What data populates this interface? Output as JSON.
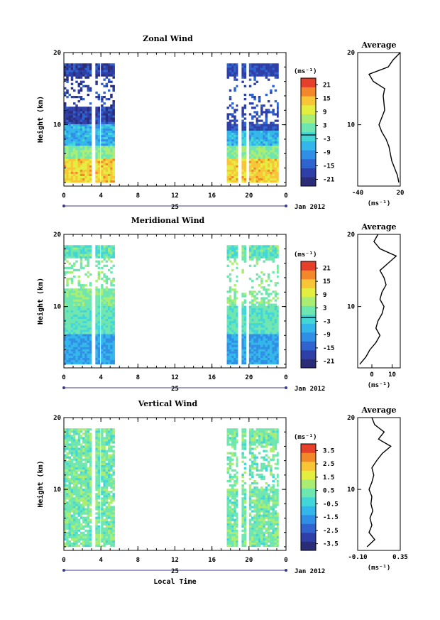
{
  "chart_data": [
    {
      "type": "heatmap",
      "title": "Zonal Wind",
      "ylabel": "Height (km)",
      "ylim": [
        1.5,
        20
      ],
      "yticks": [
        "20",
        "10"
      ],
      "xticks": [
        "0",
        "4",
        "8",
        "12",
        "16",
        "20",
        "0"
      ],
      "xlim": [
        0,
        24
      ],
      "date_day": "25",
      "date_label": "Jan 2012",
      "colorbar": {
        "unit": "(ms⁻¹)",
        "ticks": [
          "21",
          "15",
          "9",
          "3",
          "-3",
          "-9",
          "-15",
          "-21"
        ],
        "min": -24,
        "max": 24
      },
      "segments": [
        [
          0,
          3.0
        ],
        [
          3.4,
          3.9
        ],
        [
          4.0,
          5.5
        ],
        [
          17.6,
          18.8
        ],
        [
          19.2,
          19.7
        ],
        [
          20.0,
          23.2
        ]
      ],
      "palette_side": "warm",
      "average": {
        "title": "Average",
        "unit": "(ms⁻¹)",
        "xlim": [
          -40,
          20
        ],
        "xticks": [
          "-40",
          "20"
        ],
        "heights": [
          2,
          3,
          4,
          5,
          6,
          7,
          8,
          9,
          10,
          11,
          12,
          13,
          14,
          15,
          16,
          17,
          18,
          19,
          20
        ],
        "values": [
          18,
          16,
          12,
          8,
          6,
          4,
          0,
          -6,
          -10,
          -6,
          -2,
          -3,
          -4,
          -2,
          -18,
          -24,
          3,
          10,
          20
        ]
      }
    },
    {
      "type": "heatmap",
      "title": "Meridional Wind",
      "ylabel": "Height (km)",
      "ylim": [
        1.5,
        20
      ],
      "yticks": [
        "20",
        "10"
      ],
      "xticks": [
        "0",
        "4",
        "8",
        "12",
        "16",
        "20",
        "0"
      ],
      "xlim": [
        0,
        24
      ],
      "date_day": "25",
      "date_label": "Jan 2012",
      "colorbar": {
        "unit": "(ms⁻¹)",
        "ticks": [
          "21",
          "15",
          "9",
          "3",
          "-3",
          "-9",
          "-15",
          "-21"
        ],
        "min": -24,
        "max": 24
      },
      "segments": [
        [
          0,
          3.0
        ],
        [
          3.4,
          3.9
        ],
        [
          4.0,
          5.5
        ],
        [
          17.6,
          18.8
        ],
        [
          19.2,
          19.7
        ],
        [
          20.0,
          23.2
        ]
      ],
      "palette_side": "cool",
      "average": {
        "title": "Average",
        "unit": "(ms⁻¹)",
        "xlim": [
          -7,
          14
        ],
        "xticks": [
          "0",
          "10"
        ],
        "heights": [
          2,
          3,
          4,
          5,
          6,
          7,
          8,
          9,
          10,
          11,
          12,
          13,
          14,
          15,
          16,
          17,
          18,
          19,
          20
        ],
        "values": [
          -6,
          -3,
          -1,
          2,
          4,
          2,
          3,
          5,
          6,
          4,
          5,
          7,
          6,
          4,
          8,
          12,
          4,
          1,
          3
        ]
      }
    },
    {
      "type": "heatmap",
      "title": "Vertical Wind",
      "ylabel": "Height (km)",
      "xlabel": "Local Time",
      "ylim": [
        1.5,
        20
      ],
      "yticks": [
        "20",
        "10"
      ],
      "xticks": [
        "0",
        "4",
        "8",
        "12",
        "16",
        "20",
        "0"
      ],
      "xlim": [
        0,
        24
      ],
      "date_day": "25",
      "date_label": "Jan 2012",
      "colorbar": {
        "unit": "(ms⁻¹)",
        "ticks": [
          "3.5",
          "2.5",
          "1.5",
          "0.5",
          "-0.5",
          "-1.5",
          "-2.5",
          "-3.5"
        ],
        "min": -4,
        "max": 4
      },
      "segments": [
        [
          0,
          3.0
        ],
        [
          3.4,
          3.9
        ],
        [
          4.0,
          5.5
        ],
        [
          17.6,
          18.8
        ],
        [
          19.2,
          19.7
        ],
        [
          20.0,
          23.2
        ]
      ],
      "palette_side": "neutral",
      "average": {
        "title": "Average",
        "unit": "(ms⁻¹)",
        "xlim": [
          -0.1,
          0.35
        ],
        "xticks": [
          "-0.10",
          "0.35"
        ],
        "heights": [
          2,
          3,
          4,
          5,
          6,
          7,
          8,
          9,
          10,
          11,
          12,
          13,
          14,
          15,
          16,
          17,
          18,
          19,
          20
        ],
        "values": [
          0.0,
          0.08,
          0.02,
          0.05,
          0.03,
          0.06,
          0.04,
          0.05,
          0.02,
          0.05,
          0.07,
          0.05,
          0.1,
          0.16,
          0.25,
          0.12,
          0.18,
          0.08,
          0.05
        ]
      }
    }
  ]
}
